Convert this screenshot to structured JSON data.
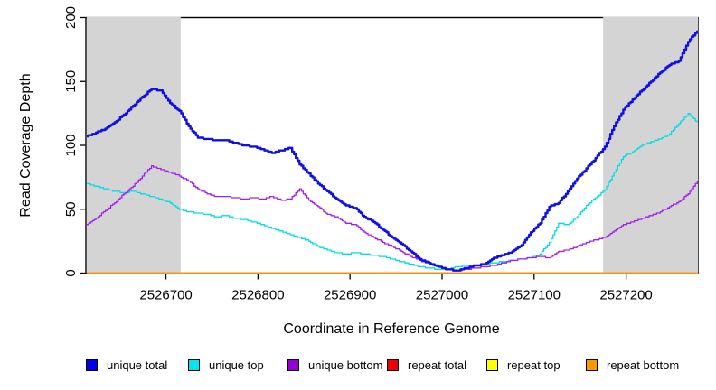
{
  "chart_data": {
    "type": "line",
    "title": "",
    "xlabel": "Coordinate in Reference Genome",
    "ylabel": "Read Coverage Depth",
    "xlim": [
      2526613,
      2527278
    ],
    "ylim": [
      0,
      200
    ],
    "x_ticks": [
      2526700,
      2526800,
      2526900,
      2527000,
      2527100,
      2527200
    ],
    "y_ticks": [
      0,
      50,
      100,
      150,
      200
    ],
    "grid": false,
    "legend_position": "bottom",
    "background_color": "#ffffff",
    "shaded_regions": [
      {
        "name": "repeat-region-left",
        "x0": 2526613,
        "x1": 2526716,
        "color": "#d4d4d4"
      },
      {
        "name": "repeat-region-right",
        "x0": 2527175,
        "x1": 2527278,
        "color": "#d4d4d4"
      }
    ],
    "x_start": 2526614,
    "x_step": 10.05,
    "series": [
      {
        "name": "repeat total",
        "color": "#ee0000",
        "width": 1.2,
        "values": [
          0,
          0,
          0,
          0,
          0,
          0,
          0,
          0,
          0,
          0,
          0,
          0,
          0,
          0,
          0,
          0,
          0,
          0,
          0,
          0,
          0,
          0,
          0,
          0,
          0,
          0,
          0,
          0,
          0,
          0,
          0,
          0,
          0,
          0,
          0,
          0,
          0,
          0,
          0,
          0,
          0,
          0,
          0,
          0,
          0,
          0,
          0,
          0,
          0,
          0,
          0,
          0,
          0,
          0,
          0,
          0,
          0,
          0,
          0,
          0,
          0,
          0,
          0,
          0,
          0,
          0,
          0
        ]
      },
      {
        "name": "repeat top",
        "color": "#ffff00",
        "width": 1.2,
        "values": [
          0,
          0,
          0,
          0,
          0,
          0,
          0,
          0,
          0,
          0,
          0,
          0,
          0,
          0,
          0,
          0,
          0,
          0,
          0,
          0,
          0,
          0,
          0,
          0,
          0,
          0,
          0,
          0,
          0,
          0,
          0,
          0,
          0,
          0,
          0,
          0,
          0,
          0,
          0,
          0,
          0,
          0,
          0,
          0,
          0,
          0,
          0,
          0,
          0,
          0,
          0,
          0,
          0,
          0,
          0,
          0,
          0,
          0,
          0,
          0,
          0,
          0,
          0,
          0,
          0,
          0,
          0
        ]
      },
      {
        "name": "repeat bottom",
        "color": "#ff9100",
        "width": 1.8,
        "values": [
          0,
          0,
          0,
          0,
          0,
          0,
          0,
          0,
          0,
          0,
          0,
          0,
          0,
          0,
          0,
          0,
          0,
          0,
          0,
          0,
          0,
          0,
          0,
          0,
          0,
          0,
          0,
          0,
          0,
          0,
          0,
          0,
          0,
          0,
          0,
          0,
          0,
          0,
          0,
          0,
          0,
          0,
          0,
          0,
          0,
          0,
          0,
          0,
          0,
          0,
          0,
          0,
          0,
          0,
          0,
          0,
          0,
          0,
          0,
          0,
          0,
          0,
          0,
          0,
          0,
          0,
          0
        ]
      },
      {
        "name": "unique top",
        "color": "#00dde6",
        "width": 1.3,
        "values": [
          70,
          68,
          66,
          64,
          63,
          64,
          62,
          60,
          58,
          55,
          50,
          48,
          47,
          46,
          44,
          45,
          43,
          42,
          40,
          38,
          35,
          33,
          30,
          28,
          25,
          21,
          18,
          16,
          15,
          16,
          15,
          14,
          13,
          11,
          9,
          7,
          5,
          4,
          3,
          3,
          5,
          6,
          6,
          7,
          8,
          9,
          10,
          11,
          12,
          15,
          24,
          39,
          38,
          44,
          53,
          59,
          65,
          79,
          91,
          95,
          100,
          103,
          105,
          109,
          117,
          125,
          118
        ]
      },
      {
        "name": "unique bottom",
        "color": "#a020f0",
        "width": 1.3,
        "values": [
          38,
          43,
          49,
          55,
          62,
          68,
          76,
          84,
          81,
          79,
          76,
          72,
          66,
          62,
          60,
          60,
          59,
          58,
          59,
          58,
          60,
          57,
          58,
          66,
          57,
          52,
          46,
          44,
          39,
          38,
          32,
          28,
          24,
          21,
          17,
          13,
          10,
          7,
          5,
          3,
          2,
          3,
          4,
          5,
          6,
          8,
          10,
          11,
          12,
          13,
          12,
          17,
          18,
          21,
          24,
          26,
          28,
          33,
          38,
          40,
          43,
          45,
          48,
          52,
          56,
          62,
          72
        ]
      },
      {
        "name": "unique total",
        "color": "#0f0fe6",
        "width": 2.4,
        "values": [
          107,
          110,
          113,
          118,
          124,
          131,
          138,
          144,
          143,
          133,
          127,
          115,
          106,
          105,
          104,
          104,
          102,
          100,
          99,
          97,
          94,
          96,
          98,
          85,
          78,
          70,
          64,
          58,
          53,
          51,
          44,
          40,
          34,
          28,
          23,
          17,
          11,
          8,
          5,
          3,
          2,
          4,
          6,
          7,
          12,
          14,
          17,
          22,
          32,
          39,
          52,
          55,
          64,
          74,
          82,
          90,
          99,
          115,
          128,
          136,
          143,
          150,
          157,
          163,
          166,
          181,
          190
        ]
      }
    ],
    "legend": [
      {
        "label": "unique total",
        "color": "#0000ee"
      },
      {
        "label": "unique top",
        "color": "#00e5ee"
      },
      {
        "label": "unique bottom",
        "color": "#9400d3"
      },
      {
        "label": "repeat total",
        "color": "#ee0000"
      },
      {
        "label": "repeat top",
        "color": "#ffff00"
      },
      {
        "label": "repeat bottom",
        "color": "#ff9800"
      }
    ]
  }
}
